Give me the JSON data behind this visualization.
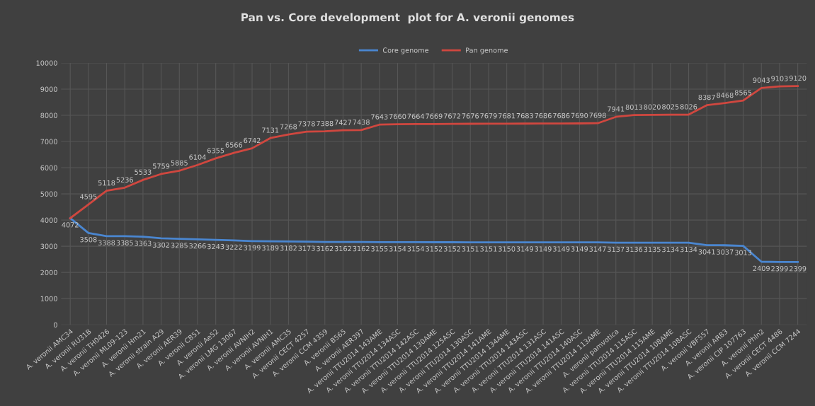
{
  "chart_data": {
    "type": "line",
    "title": "Pan vs. Core development  plot for A. veronii genomes",
    "categories": [
      "A. veronii AMC34",
      "A. veronii RU31B",
      "A. veronii TH0426",
      "A. veronii ML09-123",
      "A. veronii Hm21",
      "A. veronii strain A29",
      "A. veronii AER39",
      "A. veronii CB51",
      "A. veronii Ae52",
      "A. veronii LMG 13067",
      "A. veronii AVNIH2",
      "A. veronii AVNIH1",
      "A. veronii AMC35",
      "A. veronii CECT 4257",
      "A. veronii CCM 4359",
      "A. veronii B565",
      "A. veronii AER397",
      "A. veronii TTU2014 143AME",
      "A. veronii TTU2014 134ASC",
      "A. veronii TTU2014 142ASC",
      "A. veronii TTU2014 130AME",
      "A. veronii TTU2014 125ASC",
      "A. veronii TTU2014 130ASC",
      "A. veronii TTU2014 141AME",
      "A. veronii TTU2014 134AME",
      "A. veronii TTU2014 143ASC",
      "A. veronii TTU2014 131ASC",
      "A. veronii TTU2014 141ASC",
      "A. veronii TTU2014 140ASC",
      "A. veronii TTU2014 113AME",
      "A. veronii pamvotica",
      "A. veronii TTU2014 115ASC",
      "A. veronii TTU2014 115AME",
      "A. veronii TTU2014 108AME",
      "A. veronii TTU2014 108ASC",
      "A. veronii VBF557",
      "A. veronii ARB3",
      "A. veronii CIP 107763",
      "A. veronii Phln2",
      "A. veronii CECT 4486",
      "A. veronii CCM 7244"
    ],
    "series": [
      {
        "name": "Core genome",
        "color": "#4a86d0",
        "value_labels": [
          "4072",
          "3508",
          "3388",
          "3385",
          "3363",
          "3302",
          "3285",
          "3266",
          "3243",
          "3222",
          "3199",
          "3189",
          "3182",
          "3173",
          "3162",
          "3162",
          "3162",
          "3155",
          "3154",
          "3154",
          "3152",
          "3152",
          "3151",
          "3151",
          "3150",
          "3149",
          "3149",
          "3149",
          "3149",
          "3147",
          "3137",
          "3136",
          "3135",
          "3134",
          "3134",
          "3041",
          "3037",
          "3013",
          "2409",
          "2399",
          "2399"
        ],
        "values": [
          4072,
          3508,
          3388,
          3385,
          3363,
          3302,
          3285,
          3266,
          3243,
          3222,
          3199,
          3189,
          3182,
          3173,
          3162,
          3162,
          3162,
          3155,
          3154,
          3154,
          3152,
          3152,
          3151,
          3151,
          3150,
          3149,
          3149,
          3149,
          3149,
          3147,
          3137,
          3136,
          3135,
          3134,
          3134,
          3041,
          3037,
          3013,
          2409,
          2399,
          2399
        ]
      },
      {
        "name": "Pan genome",
        "color": "#d0473f",
        "value_labels": [
          null,
          "4595",
          "5118",
          "5236",
          "5533",
          "5759",
          "5885",
          "6104",
          "6355",
          "6566",
          "6742",
          "7131",
          "7268",
          "7378",
          "7388",
          "7427",
          "7438",
          "7643",
          "7660",
          "7664",
          "7669",
          "7672",
          "7676",
          "7679",
          "7681",
          "7683",
          "7686",
          "7686",
          "7690",
          "7698",
          "7941",
          "8013",
          "8020",
          "8025",
          "8026",
          "8387",
          "8468",
          "8565",
          "9043",
          "9103",
          "9120"
        ],
        "values": [
          4072,
          4595,
          5118,
          5236,
          5533,
          5759,
          5885,
          6104,
          6355,
          6566,
          6742,
          7131,
          7268,
          7378,
          7388,
          7427,
          7438,
          7643,
          7660,
          7664,
          7669,
          7672,
          7676,
          7679,
          7681,
          7683,
          7686,
          7686,
          7690,
          7698,
          7941,
          8013,
          8020,
          8025,
          8026,
          8387,
          8468,
          8565,
          9043,
          9103,
          9120
        ]
      }
    ],
    "ylim": [
      0,
      10000
    ],
    "yticks": [
      0,
      1000,
      2000,
      3000,
      4000,
      5000,
      6000,
      7000,
      8000,
      9000,
      10000
    ],
    "grid": true,
    "legend": "top",
    "marker": "none",
    "line_style": "solid"
  }
}
